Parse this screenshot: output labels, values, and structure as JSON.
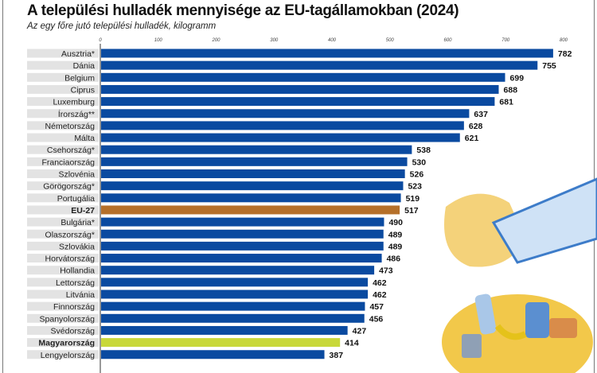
{
  "chart_data": {
    "type": "bar",
    "orientation": "horizontal",
    "title": "A települési hulladék mennyisége az EU-tagállamokban (2024)",
    "subtitle": "Az egy főre jutó települési hulladék, kilogramm",
    "xlim": [
      0,
      800
    ],
    "xticks": [
      "0",
      "100",
      "200",
      "300",
      "400",
      "500",
      "600",
      "700",
      "800"
    ],
    "grid": false,
    "categories": [
      "Ausztria*",
      "Dánia",
      "Belgium",
      "Ciprus",
      "Luxemburg",
      "Írország**",
      "Németország",
      "Málta",
      "Csehország*",
      "Franciaország",
      "Szlovénia",
      "Görögország*",
      "Portugália",
      "EU-27",
      "Bulgária*",
      "Olaszország*",
      "Szlovákia",
      "Horvátország",
      "Hollandia",
      "Lettország",
      "Litvánia",
      "Finnország",
      "Spanyolország",
      "Svédország",
      "Magyarország",
      "Lengyelország"
    ],
    "values": [
      782,
      755,
      699,
      688,
      681,
      637,
      628,
      621,
      538,
      530,
      526,
      523,
      519,
      517,
      490,
      489,
      489,
      486,
      473,
      462,
      462,
      457,
      456,
      427,
      414,
      387
    ],
    "highlight": {
      "EU-27": "#b5702a",
      "Magyarország": "#c8d83a"
    },
    "bold_labels": [
      "EU-27",
      "Magyarország"
    ],
    "colors": {
      "default_bar": "#0a4aa0",
      "label_bg": "#e3e3e3"
    }
  }
}
